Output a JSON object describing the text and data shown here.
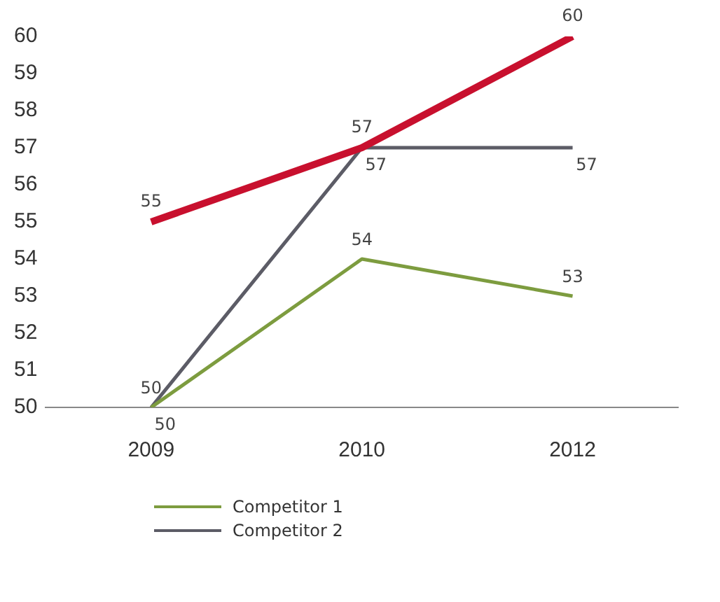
{
  "chart_data": {
    "type": "line",
    "categories": [
      "2009",
      "2010",
      "2012"
    ],
    "series": [
      {
        "color": "#c8102e",
        "values": [
          55,
          57,
          60
        ]
      },
      {
        "name": "Competitor 1",
        "color": "#7d9c3f",
        "values": [
          50,
          54,
          53
        ]
      },
      {
        "name": "Competitor 2",
        "color": "#5c5c66",
        "values": [
          50,
          57,
          57
        ]
      }
    ],
    "ylim": [
      50,
      60
    ],
    "yticks": [
      50,
      51,
      52,
      53,
      54,
      55,
      56,
      57,
      58,
      59,
      60
    ],
    "grid": false,
    "legend": "bottom",
    "data_labels": true,
    "marker": "none",
    "line_style": "solid"
  }
}
